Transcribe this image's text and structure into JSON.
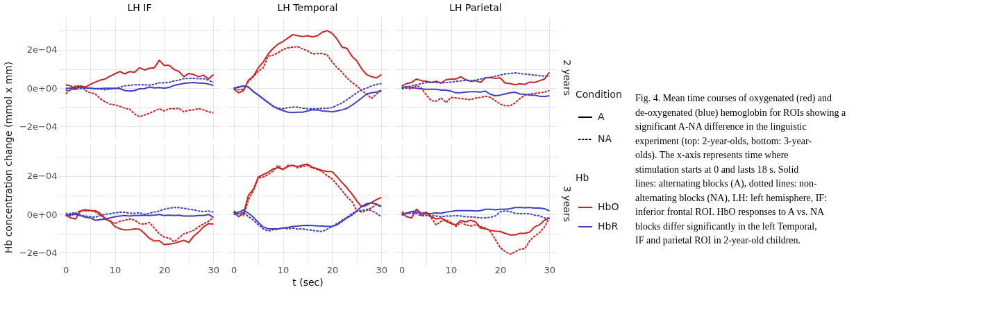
{
  "chart_data": [
    {
      "type": "line",
      "title": "LH IF",
      "ylabel": "Hb concentration change (mmol x mm)",
      "tick_labels": "y",
      "grid": true,
      "x": [
        0,
        1,
        2,
        3,
        4,
        5,
        6,
        7,
        8,
        9,
        10,
        11,
        12,
        13,
        14,
        15,
        16,
        17,
        18,
        19,
        20,
        21,
        22,
        23,
        24,
        25,
        26,
        27,
        28,
        29,
        30
      ],
      "xlim": [
        -1.5,
        31.5
      ],
      "ylim": [
        -0.00026,
        0.00037
      ],
      "xticks": [
        0,
        {
          "value": 5,
          "label": null
        },
        10,
        {
          "value": 15,
          "label": null
        },
        20,
        {
          "value": 25,
          "label": null
        },
        30
      ],
      "yticks": [
        {
          "value": -0.0002,
          "label": "−2e−04"
        },
        {
          "value": -0.0001,
          "label": null
        },
        {
          "value": 0,
          "label": "0e+00"
        },
        {
          "value": 0.0001,
          "label": null
        },
        {
          "value": 0.0002,
          "label": "2e−04"
        },
        {
          "value": 0.0003,
          "label": null
        }
      ],
      "series": [
        {
          "line_style": "solid",
          "color": "#cc2222",
          "values": [
            1.8e-05,
            1.2e-05,
            -6e-06,
            1.2e-05,
            6e-06,
            2e-05,
            3.2e-05,
            4.2e-05,
            4.8e-05,
            6.3e-05,
            7.5e-05,
            8.7e-05,
            7.5e-05,
            8.7e-05,
            8.3e-05,
            0.000107,
            9.5e-05,
            0.000104,
            0.000107,
            0.000146,
            0.000119,
            0.000119,
            9.8e-05,
            8.7e-05,
            6e-05,
            7.7e-05,
            7.1e-05,
            6e-05,
            6.8e-05,
            4.8e-05,
            7.1e-05
          ]
        },
        {
          "line_style": "dashed",
          "color": "#cc2222",
          "values": [
            -3e-05,
            -6e-06,
            1.2e-05,
            1.2e-05,
            -1.2e-05,
            -2.4e-05,
            -3e-05,
            -5.4e-05,
            -7.1e-05,
            -8.3e-05,
            -8.7e-05,
            -9.5e-05,
            -0.000105,
            -0.00011,
            -0.000135,
            -0.000149,
            -0.00014,
            -0.000131,
            -0.000119,
            -0.000107,
            -0.000119,
            -0.000107,
            -0.000107,
            -0.000105,
            -0.000123,
            -0.000115,
            -0.000113,
            -0.000107,
            -0.000113,
            -0.000123,
            -0.000129
          ]
        },
        {
          "line_style": "solid",
          "color": "#3f3fbf",
          "values": [
            0.0,
            0.0,
            5e-06,
            5e-06,
            2e-06,
            0.0,
            -2e-06,
            -2e-06,
            0.0,
            0.0,
            0.0,
            -2e-06,
            -1.2e-05,
            -1.5e-05,
            -1.2e-05,
            -3e-06,
            -2e-06,
            6e-06,
            2e-06,
            3e-06,
            0.0,
            4e-06,
            1.5e-05,
            2e-05,
            2.5e-05,
            2.8e-05,
            3e-05,
            2.7e-05,
            2.6e-05,
            2.2e-05,
            1.4e-05
          ]
        },
        {
          "line_style": "dashed",
          "color": "#3f3fbf",
          "values": [
            -1.2e-05,
            -8e-06,
            -5e-06,
            -2e-06,
            0.0,
            0.0,
            -3e-06,
            -5e-06,
            -8e-06,
            -5e-06,
            -2e-06,
            5e-06,
            1.2e-05,
            1.5e-05,
            1.8e-05,
            1.8e-05,
            1.8e-05,
            1.6e-05,
            2e-05,
            2.8e-05,
            2.8e-05,
            3e-05,
            3.8e-05,
            4.2e-05,
            5e-05,
            5.1e-05,
            5.1e-05,
            5e-05,
            5e-05,
            4.2e-05,
            3e-05
          ]
        }
      ]
    },
    {
      "type": "line",
      "title": "LH Temporal",
      "tick_labels": false,
      "grid": true,
      "x": [
        0,
        1,
        2,
        3,
        4,
        5,
        6,
        7,
        8,
        9,
        10,
        11,
        12,
        13,
        14,
        15,
        16,
        17,
        18,
        19,
        20,
        21,
        22,
        23,
        24,
        25,
        26,
        27,
        28,
        29,
        30
      ],
      "xlim": [
        -1.5,
        31.5
      ],
      "ylim": [
        -0.00026,
        0.00037
      ],
      "xticks": [
        0,
        {
          "value": 5,
          "label": null
        },
        10,
        {
          "value": 15,
          "label": null
        },
        20,
        {
          "value": 25,
          "label": null
        },
        30
      ],
      "yticks": [
        {
          "value": -0.0002,
          "label": null
        },
        {
          "value": -0.0001,
          "label": null
        },
        {
          "value": 0,
          "label": null
        },
        {
          "value": 0.0001,
          "label": null
        },
        {
          "value": 0.0002,
          "label": null
        },
        {
          "value": 0.0003,
          "label": null
        }
      ],
      "series": [
        {
          "line_style": "solid",
          "color": "#cc2222",
          "values": [
            -4e-06,
            -2.4e-05,
            -1.2e-05,
            4.2e-05,
            6.3e-05,
            0.000107,
            0.000137,
            0.000179,
            0.000208,
            0.00023,
            0.000244,
            0.000262,
            0.00028,
            0.000274,
            0.00027,
            0.000274,
            0.000268,
            0.000274,
            0.000292,
            0.000301,
            0.000286,
            0.000256,
            0.000214,
            0.000208,
            0.000167,
            0.000143,
            0.000101,
            7.1e-05,
            6e-05,
            5.4e-05,
            7.1e-05
          ]
        },
        {
          "line_style": "dashed",
          "color": "#cc2222",
          "values": [
            -4e-06,
            -8e-06,
            -6e-06,
            3.6e-05,
            6e-05,
            8.9e-05,
            0.000107,
            0.000167,
            0.000173,
            0.000185,
            0.000202,
            0.000211,
            0.000214,
            0.000217,
            0.000205,
            0.000196,
            0.000179,
            0.000181,
            0.000181,
            0.000173,
            0.000137,
            0.000107,
            8.3e-05,
            5.4e-05,
            3e-05,
            1.2e-05,
            -1.2e-05,
            -3e-05,
            -5.4e-05,
            -3e-05,
            -1.2e-05
          ]
        },
        {
          "line_style": "solid",
          "color": "#3f3fbf",
          "values": [
            0.0,
            4e-06,
            1.2e-05,
            6e-06,
            -1.8e-05,
            -3.6e-05,
            -5.6e-05,
            -7.5e-05,
            -9.5e-05,
            -0.000107,
            -0.000117,
            -0.000125,
            -0.000127,
            -0.000125,
            -0.000125,
            -0.000119,
            -0.000113,
            -0.000113,
            -0.000119,
            -0.000121,
            -0.000123,
            -0.000119,
            -0.000113,
            -0.000105,
            -8.9e-05,
            -7.1e-05,
            -5.1e-05,
            -3e-05,
            -2.4e-05,
            -2e-05,
            -1.2e-05
          ]
        },
        {
          "line_style": "dashed",
          "color": "#3f3fbf",
          "values": [
            0.0,
            8e-06,
            1.2e-05,
            6e-06,
            -1.8e-05,
            -3.6e-05,
            -5.6e-05,
            -7.5e-05,
            -9.3e-05,
            -0.000105,
            -0.000107,
            -0.000101,
            -9.9e-05,
            -9.9e-05,
            -0.000104,
            -0.000107,
            -0.000108,
            -0.000107,
            -0.000105,
            -0.000105,
            -0.000101,
            -8.9e-05,
            -7.7e-05,
            -6e-05,
            -4.2e-05,
            -2.4e-05,
            -8e-06,
            0.0,
            1.2e-05,
            2e-05,
            2.4e-05
          ]
        }
      ]
    },
    {
      "type": "line",
      "title": "LH Parietal",
      "tick_labels": false,
      "grid": true,
      "legend": "right",
      "legend_title": "Hb",
      "annotations": [
        "2 years",
        "Condition",
        "A",
        "NA"
      ],
      "x": [
        0,
        1,
        2,
        3,
        4,
        5,
        6,
        7,
        8,
        9,
        10,
        11,
        12,
        13,
        14,
        15,
        16,
        17,
        18,
        19,
        20,
        21,
        22,
        23,
        24,
        25,
        26,
        27,
        28,
        29,
        30
      ],
      "xlim": [
        -1.5,
        31.5
      ],
      "ylim": [
        -0.00026,
        0.00037
      ],
      "xticks": [
        0,
        {
          "value": 5,
          "label": null
        },
        10,
        {
          "value": 15,
          "label": null
        },
        20,
        {
          "value": 25,
          "label": null
        },
        30
      ],
      "yticks": [
        {
          "value": -0.0002,
          "label": null
        },
        {
          "value": -0.0001,
          "label": null
        },
        {
          "value": 0,
          "label": null
        },
        {
          "value": 0.0001,
          "label": null
        },
        {
          "value": 0.0002,
          "label": null
        },
        {
          "value": 0.0003,
          "label": null
        }
      ],
      "series": [
        {
          "name": "HbO",
          "line_style": "solid",
          "color": "#cc2222",
          "values": [
            1.2e-05,
            2.4e-05,
            3e-05,
            4.8e-05,
            3.9e-05,
            3.6e-05,
            3e-05,
            3.6e-05,
            2.7e-05,
            4.4e-05,
            4.8e-05,
            4.8e-05,
            6e-05,
            4.4e-05,
            3.6e-05,
            3.9e-05,
            3e-05,
            5.4e-05,
            5.6e-05,
            5.1e-05,
            5.4e-05,
            2.7e-05,
            2.4e-05,
            1.8e-05,
            2.3e-05,
            2e-05,
            3.2e-05,
            3e-05,
            3.9e-05,
            4.8e-05,
            8.3e-05
          ]
        },
        {
          "line_style": "dashed",
          "color": "#cc2222",
          "values": [
            6e-06,
            0.0,
            -4e-06,
            1.5e-05,
            0.0,
            -3.6e-05,
            -6.5e-05,
            -6.8e-05,
            -5.1e-05,
            -7.5e-05,
            -4.8e-05,
            -5.1e-05,
            -5.4e-05,
            -5.6e-05,
            -6e-05,
            -5.1e-05,
            -4.8e-05,
            -4.2e-05,
            -4.8e-05,
            -6.5e-05,
            -8.3e-05,
            -9.2e-05,
            -9.2e-05,
            -7.7e-05,
            -5.4e-05,
            -3.6e-05,
            -3e-05,
            -2.7e-05,
            -2.4e-05,
            -2.1e-05,
            -1.2e-05
          ]
        },
        {
          "name": "HbR",
          "line_style": "solid",
          "color": "#3f3fbf",
          "values": [
            4e-06,
            8e-06,
            4e-06,
            0.0,
            -4e-06,
            -6e-06,
            -6e-06,
            -6e-06,
            -1e-05,
            -1e-05,
            -1.5e-05,
            -2.4e-05,
            -2.4e-05,
            -2e-05,
            -1.8e-05,
            -1.8e-05,
            -2e-05,
            -1.5e-05,
            -3.2e-05,
            -3.9e-05,
            -3.6e-05,
            -3e-05,
            -2.4e-05,
            -2.1e-05,
            -3e-05,
            -3.2e-05,
            -3.6e-05,
            -3.6e-05,
            -4.2e-05,
            -4.4e-05,
            -3.9e-05
          ]
        },
        {
          "line_style": "dashed",
          "color": "#3f3fbf",
          "values": [
            -4e-06,
            6e-06,
            1.2e-05,
            1.8e-05,
            2.4e-05,
            3e-05,
            3.2e-05,
            3e-05,
            2.7e-05,
            3e-05,
            3.2e-05,
            3.6e-05,
            3.8e-05,
            4.2e-05,
            3.8e-05,
            4.2e-05,
            4.8e-05,
            5.4e-05,
            5.6e-05,
            6.3e-05,
            6.8e-05,
            7.5e-05,
            7.7e-05,
            8e-05,
            7.7e-05,
            7.4e-05,
            7.1e-05,
            6.8e-05,
            6.5e-05,
            6.3e-05,
            6.3e-05
          ]
        }
      ]
    },
    {
      "type": "line",
      "grid": true,
      "x": [
        0,
        1,
        2,
        3,
        4,
        5,
        6,
        7,
        8,
        9,
        10,
        11,
        12,
        13,
        14,
        15,
        16,
        17,
        18,
        19,
        20,
        21,
        22,
        23,
        24,
        25,
        26,
        27,
        28,
        29,
        30
      ],
      "xlim": [
        -1.5,
        31.5
      ],
      "ylim": [
        -0.00026,
        0.00037
      ],
      "xticks": [
        0,
        {
          "value": 5,
          "label": null
        },
        10,
        {
          "value": 15,
          "label": null
        },
        20,
        {
          "value": 25,
          "label": null
        },
        30
      ],
      "yticks": [
        {
          "value": -0.0002,
          "label": "−2e−04"
        },
        {
          "value": -0.0001,
          "label": null
        },
        {
          "value": 0,
          "label": "0e+00"
        },
        {
          "value": 0.0001,
          "label": null
        },
        {
          "value": 0.0002,
          "label": "2e−04"
        },
        {
          "value": 0.0003,
          "label": null
        }
      ],
      "series": [
        {
          "line_style": "solid",
          "color": "#cc2222",
          "values": [
            -4e-06,
            -1.8e-05,
            -2.4e-05,
            1.8e-05,
            2.4e-05,
            2.1e-05,
            2e-05,
            6e-06,
            -2.4e-05,
            -3.6e-05,
            -6.3e-05,
            -7.5e-05,
            -8.1e-05,
            -8e-05,
            -7.5e-05,
            -7.7e-05,
            -9.9e-05,
            -0.000125,
            -0.000139,
            -0.000137,
            -0.000158,
            -0.000155,
            -0.000151,
            -0.000143,
            -0.000135,
            -0.000146,
            -0.000113,
            -9.2e-05,
            -6.5e-05,
            -4.8e-05,
            -5.1e-05
          ]
        },
        {
          "line_style": "dashed",
          "color": "#cc2222",
          "values": [
            8e-06,
            -8e-06,
            6e-06,
            2e-05,
            1.8e-05,
            2e-05,
            1.4e-05,
            -4e-06,
            -1.8e-05,
            -3.2e-05,
            -4.8e-05,
            -3.6e-05,
            -3e-05,
            -2.4e-05,
            -3e-05,
            -4.8e-05,
            -5.1e-05,
            -4.2e-05,
            -7.1e-05,
            -0.000101,
            -0.000119,
            -0.000123,
            -0.000143,
            -0.000123,
            -0.000101,
            -9.3e-05,
            -8.3e-05,
            -6.5e-05,
            -4.8e-05,
            -3.6e-05,
            -1.5e-05
          ]
        },
        {
          "line_style": "solid",
          "color": "#3f3fbf",
          "values": [
            -6e-06,
            0.0,
            0.0,
            -6e-06,
            -1.5e-05,
            -1.8e-05,
            -3e-05,
            -2.7e-05,
            -2.4e-05,
            -1.8e-05,
            -1.2e-05,
            -8e-06,
            -6e-06,
            -8e-06,
            -6e-06,
            -6e-06,
            -4e-06,
            -6e-06,
            -4e-06,
            0.0,
            -6e-06,
            -4e-06,
            -6e-06,
            -4e-06,
            -8e-06,
            -8e-06,
            -8e-06,
            -6e-06,
            -6e-06,
            0.0,
            -1.5e-05
          ]
        },
        {
          "line_style": "dashed",
          "color": "#3f3fbf",
          "values": [
            -6e-06,
            6e-06,
            8e-06,
            -4e-06,
            -8e-06,
            -1.2e-05,
            -1.5e-05,
            -6e-06,
            0.0,
            4e-06,
            8e-06,
            1.2e-05,
            1.2e-05,
            6e-06,
            6e-06,
            8e-06,
            0.0,
            6e-06,
            1.2e-05,
            1.8e-05,
            2.7e-05,
            3.2e-05,
            3.6e-05,
            3.6e-05,
            3.2e-05,
            2.7e-05,
            2.4e-05,
            1.8e-05,
            1.5e-05,
            1.8e-05,
            1.2e-05
          ]
        }
      ]
    },
    {
      "type": "line",
      "xlabel": "t (sec)",
      "tick_labels": "x",
      "grid": true,
      "x": [
        0,
        1,
        2,
        3,
        4,
        5,
        6,
        7,
        8,
        9,
        10,
        11,
        12,
        13,
        14,
        15,
        16,
        17,
        18,
        19,
        20,
        21,
        22,
        23,
        24,
        25,
        26,
        27,
        28,
        29,
        30
      ],
      "xlim": [
        -1.5,
        31.5
      ],
      "ylim": [
        -0.00026,
        0.00037
      ],
      "xticks": [
        0,
        {
          "value": 5,
          "label": null
        },
        10,
        {
          "value": 15,
          "label": null
        },
        20,
        {
          "value": 25,
          "label": null
        },
        30
      ],
      "yticks": [
        {
          "value": -0.0002,
          "label": null
        },
        {
          "value": -0.0001,
          "label": null
        },
        {
          "value": 0,
          "label": null
        },
        {
          "value": 0.0001,
          "label": null
        },
        {
          "value": 0.0002,
          "label": null
        },
        {
          "value": 0.0003,
          "label": null
        }
      ],
      "series": [
        {
          "line_style": "solid",
          "color": "#cc2222",
          "values": [
            1.2e-05,
            -1.2e-05,
            6e-06,
            0.000101,
            0.000131,
            0.000196,
            0.000208,
            0.00022,
            0.000238,
            0.000244,
            0.000235,
            0.00025,
            0.000256,
            0.00025,
            0.000258,
            0.000262,
            0.000246,
            0.000238,
            0.000229,
            0.000224,
            0.000223,
            0.000196,
            0.000167,
            0.000139,
            0.000107,
            7.1e-05,
            3.9e-05,
            4.8e-05,
            6.3e-05,
            7.7e-05,
            8.9e-05
          ]
        },
        {
          "line_style": "dashed",
          "color": "#cc2222",
          "values": [
            1.8e-05,
            4e-06,
            -6e-06,
            7.7e-05,
            0.000125,
            0.00019,
            0.000196,
            0.000208,
            0.000226,
            0.000256,
            0.000235,
            0.000256,
            0.000256,
            0.000244,
            0.00025,
            0.000256,
            0.000242,
            0.000235,
            0.000223,
            0.000202,
            0.000185,
            0.000155,
            0.000125,
            9.2e-05,
            6.8e-05,
            1.8e-05,
            1.2e-05,
            2e-05,
            3.6e-05,
            5.1e-05,
            3.9e-05
          ]
        },
        {
          "line_style": "solid",
          "color": "#3f3fbf",
          "values": [
            6e-06,
            1.2e-05,
            2.4e-05,
            6e-06,
            -1.5e-05,
            -4.2e-05,
            -6.5e-05,
            -7.5e-05,
            -7.5e-05,
            -7.5e-05,
            -7.1e-05,
            -6.8e-05,
            -6.3e-05,
            -6.1e-05,
            -5.8e-05,
            -5.7e-05,
            -5.8e-05,
            -6e-05,
            -6.1e-05,
            -6.3e-05,
            -6.3e-05,
            -5.4e-05,
            -3.6e-05,
            -1.8e-05,
            -4e-06,
            1.8e-05,
            4.2e-05,
            5.6e-05,
            6e-05,
            5.4e-05,
            4.2e-05
          ]
        },
        {
          "line_style": "dashed",
          "color": "#3f3fbf",
          "values": [
            0.0,
            4e-06,
            1.2e-05,
            -1.2e-05,
            -3e-05,
            -5.4e-05,
            -7.5e-05,
            -8.7e-05,
            -8e-05,
            -7.7e-05,
            -7.1e-05,
            -7.5e-05,
            -7.1e-05,
            -7.7e-05,
            -7.5e-05,
            -8e-05,
            -8.3e-05,
            -8.7e-05,
            -8.9e-05,
            -7.7e-05,
            -6.3e-05,
            -4.8e-05,
            -3e-05,
            -1.5e-05,
            4e-06,
            1.8e-05,
            2e-05,
            2.7e-05,
            2e-05,
            6e-06,
            -1.2e-05
          ]
        }
      ]
    },
    {
      "type": "line",
      "tick_labels": "x",
      "grid": true,
      "annotations": [
        "3 years"
      ],
      "x": [
        0,
        1,
        2,
        3,
        4,
        5,
        6,
        7,
        8,
        9,
        10,
        11,
        12,
        13,
        14,
        15,
        16,
        17,
        18,
        19,
        20,
        21,
        22,
        23,
        24,
        25,
        26,
        27,
        28,
        29,
        30
      ],
      "xlim": [
        -1.5,
        31.5
      ],
      "ylim": [
        -0.00026,
        0.00037
      ],
      "xticks": [
        0,
        {
          "value": 5,
          "label": null
        },
        10,
        {
          "value": 15,
          "label": null
        },
        20,
        {
          "value": 25,
          "label": null
        },
        30
      ],
      "yticks": [
        {
          "value": -0.0002,
          "label": null
        },
        {
          "value": -0.0001,
          "label": null
        },
        {
          "value": 0,
          "label": null
        },
        {
          "value": 0.0001,
          "label": null
        },
        {
          "value": 0.0002,
          "label": null
        },
        {
          "value": 0.0003,
          "label": null
        }
      ],
      "series": [
        {
          "line_style": "solid",
          "color": "#cc2222",
          "values": [
            6e-06,
            -1.2e-05,
            -1.8e-05,
            2.7e-05,
            4e-06,
            1.2e-05,
            -1.2e-05,
            -2.4e-05,
            -1.8e-05,
            -3.6e-05,
            -4.8e-05,
            -5.4e-05,
            -3.2e-05,
            -3.9e-05,
            -3e-05,
            -3.9e-05,
            -7.1e-05,
            -7.5e-05,
            -8.3e-05,
            -8.7e-05,
            -8.9e-05,
            -9.9e-05,
            -0.000107,
            -0.000107,
            -9.9e-05,
            -9.9e-05,
            -9.2e-05,
            -6.5e-05,
            -5.4e-05,
            -3e-05,
            -1.8e-05
          ]
        },
        {
          "line_style": "dashed",
          "color": "#cc2222",
          "values": [
            1.2e-05,
            6e-06,
            1.2e-05,
            2.4e-05,
            -6e-06,
            6e-06,
            -1.8e-05,
            -5.4e-05,
            -3.6e-05,
            -2.7e-05,
            -4.2e-05,
            -6.3e-05,
            -4.2e-05,
            -5.4e-05,
            -6e-05,
            -5.4e-05,
            -6.3e-05,
            -7.1e-05,
            -8.9e-05,
            -0.000131,
            -0.000173,
            -0.000194,
            -0.000208,
            -0.000196,
            -0.000182,
            -0.000179,
            -0.000137,
            -0.000113,
            -9.5e-05,
            -6.5e-05,
            -1.8e-05
          ]
        },
        {
          "line_style": "solid",
          "color": "#3f3fbf",
          "values": [
            0.0,
            6e-06,
            1.5e-05,
            1.2e-05,
            6e-06,
            4e-06,
            4e-06,
            8e-06,
            6e-06,
            1.2e-05,
            1.5e-05,
            2e-05,
            2e-05,
            2e-05,
            2e-05,
            1.8e-05,
            2e-05,
            2.7e-05,
            2.7e-05,
            2.4e-05,
            2.7e-05,
            2.7e-05,
            3e-05,
            3.6e-05,
            3.6e-05,
            3.5e-05,
            3.6e-05,
            3.3e-05,
            3.3e-05,
            3e-05,
            1.8e-05
          ]
        },
        {
          "line_style": "dashed",
          "color": "#3f3fbf",
          "values": [
            -4e-06,
            4e-06,
            8e-06,
            4e-06,
            -8e-06,
            -6e-06,
            -6e-06,
            -8e-06,
            -1.2e-05,
            -8e-06,
            -8e-06,
            -6e-06,
            -8e-06,
            -1.2e-05,
            -1.3e-05,
            -1.5e-05,
            -1.8e-05,
            -1.8e-05,
            -1.5e-05,
            -8e-06,
            1.4e-05,
            1.8e-05,
            1.5e-05,
            6e-06,
            4e-06,
            4e-06,
            4e-06,
            -4e-06,
            -8e-06,
            -1.8e-05,
            -2e-05
          ]
        }
      ]
    },
    {
      "type": "other",
      "annotations": [
        "Fig. 4. Mean time courses of oxygenated (red) and de-oxygenated (blue) hemoglobin for ROIs showing a significant A-NA difference in the linguistic experiment (top: 2-year-olds, bottom: 3-year-olds). The x-axis represents time where stimulation starts at 0 and lasts 18 s. Solid lines: alternating blocks (A), dotted lines: non-alternating blocks (NA), LH: left hemisphere, IF: inferior frontal ROI. HbO responses to A vs. NA blocks differ significantly in the left Temporal, IF and parietal ROI in 2-year-old children."
      ]
    }
  ]
}
